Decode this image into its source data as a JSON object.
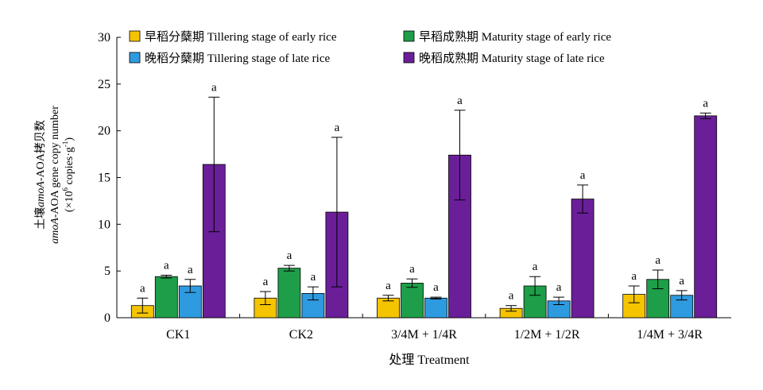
{
  "chart_data": {
    "type": "bar",
    "xlabel": "处理 Treatment",
    "ylabel_line1_cn": "土壤",
    "ylabel_line1_italic": "amoA",
    "ylabel_line1_rest": "-AOA拷贝数",
    "ylabel_line2_italic": "amoA",
    "ylabel_line2_rest": "-AOA gene copy number",
    "ylabel_line3_pre": "(×10",
    "ylabel_line3_sup1": "6",
    "ylabel_line3_mid": " copies·g",
    "ylabel_line3_sup2": "-1",
    "ylabel_line3_post": ")",
    "ylim": [
      0,
      30
    ],
    "yticks": [
      0,
      5,
      10,
      15,
      20,
      25,
      30
    ],
    "legend_position": "top",
    "categories": [
      "CK1",
      "CK2",
      "3/4M + 1/4R",
      "1/2M + 1/2R",
      "1/4M + 3/4R"
    ],
    "series": [
      {
        "name": "早稻分蘖期 Tillering stage of early rice",
        "color": "#F5C400",
        "values": [
          1.3,
          2.1,
          2.1,
          1.0,
          2.5
        ],
        "errors": [
          0.8,
          0.7,
          0.3,
          0.3,
          0.9
        ],
        "labels": [
          "a",
          "a",
          "a",
          "a",
          "a"
        ]
      },
      {
        "name": "早稻成熟期 Maturity stage of early rice",
        "color": "#1E9E48",
        "values": [
          4.4,
          5.3,
          3.7,
          3.4,
          4.1
        ],
        "errors": [
          0.15,
          0.3,
          0.45,
          1.0,
          1.0
        ],
        "labels": [
          "a",
          "a",
          "a",
          "a",
          "a"
        ]
      },
      {
        "name": "晚稻分蘖期 Tillering stage of late rice",
        "color": "#2E9BE0",
        "values": [
          3.4,
          2.6,
          2.1,
          1.8,
          2.4
        ],
        "errors": [
          0.7,
          0.7,
          0.1,
          0.4,
          0.5
        ],
        "labels": [
          "a",
          "a",
          "a",
          "a",
          "a"
        ]
      },
      {
        "name": "晚稻成熟期 Maturity stage of late rice",
        "color": "#6A1F99",
        "values": [
          16.4,
          11.3,
          17.4,
          12.7,
          21.6
        ],
        "errors": [
          7.2,
          8.0,
          4.8,
          1.5,
          0.3
        ],
        "labels": [
          "a",
          "a",
          "a",
          "a",
          "a"
        ]
      }
    ]
  }
}
